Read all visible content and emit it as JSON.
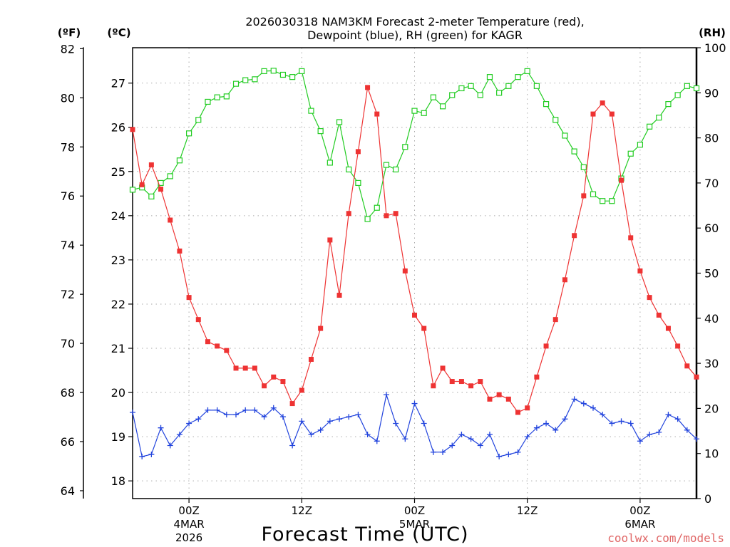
{
  "chart_data": {
    "type": "line",
    "title_line1": "2026030318 NAM3KM Forecast 2-meter Temperature (red),",
    "title_line2": "Dewpoint (blue), RH (green) for KAGR",
    "xlabel": "Forecast Time (UTC)",
    "credit": "coolwx.com/models",
    "left_f_label": "(ºF)",
    "left_c_label": "(ºC)",
    "right_label": "(RH)",
    "celsius_ylim": [
      17.6,
      27.8
    ],
    "fahrenheit_ticks": [
      64,
      66,
      68,
      70,
      72,
      74,
      76,
      78,
      80,
      82
    ],
    "celsius_ticks": [
      18,
      19,
      20,
      21,
      22,
      23,
      24,
      25,
      26,
      27
    ],
    "rh_ylim": [
      0,
      100
    ],
    "rh_ticks": [
      0,
      10,
      20,
      30,
      40,
      50,
      60,
      70,
      80,
      90,
      100
    ],
    "x_range_hours": [
      0,
      60
    ],
    "x_ticks": [
      {
        "hour": 6,
        "label": "00Z",
        "date": "4MAR",
        "year": "2026"
      },
      {
        "hour": 18,
        "label": "12Z",
        "date": "",
        "year": ""
      },
      {
        "hour": 30,
        "label": "00Z",
        "date": "5MAR",
        "year": ""
      },
      {
        "hour": 42,
        "label": "12Z",
        "date": "",
        "year": ""
      },
      {
        "hour": 54,
        "label": "00Z",
        "date": "6MAR",
        "year": ""
      }
    ],
    "series": [
      {
        "name": "Temperature",
        "unit": "C",
        "color": "#ee3333",
        "marker": "filled-square",
        "values": [
          25.95,
          24.7,
          25.15,
          24.6,
          23.9,
          23.2,
          22.15,
          21.65,
          21.15,
          21.05,
          20.95,
          20.55,
          20.55,
          20.55,
          20.15,
          20.35,
          20.25,
          19.75,
          20.05,
          20.75,
          21.45,
          23.45,
          22.2,
          24.05,
          25.45,
          26.9,
          26.3,
          24.0,
          24.05,
          22.75,
          21.75,
          21.45,
          20.15,
          20.55,
          20.25,
          20.25,
          20.15,
          20.25,
          19.85,
          19.95,
          19.85,
          19.55,
          19.65,
          20.35,
          21.05,
          21.65,
          22.55,
          23.55,
          24.45,
          26.3,
          26.55,
          26.3,
          24.8,
          23.5,
          22.75,
          22.15,
          21.75,
          21.45,
          21.05,
          20.6,
          20.35
        ]
      },
      {
        "name": "Dewpoint",
        "unit": "C",
        "color": "#2244dd",
        "marker": "plus",
        "values": [
          19.55,
          18.55,
          18.6,
          19.2,
          18.8,
          19.05,
          19.3,
          19.4,
          19.6,
          19.6,
          19.5,
          19.5,
          19.6,
          19.6,
          19.45,
          19.65,
          19.45,
          18.8,
          19.35,
          19.05,
          19.15,
          19.35,
          19.4,
          19.45,
          19.5,
          19.05,
          18.9,
          19.95,
          19.3,
          18.95,
          19.75,
          19.3,
          18.65,
          18.65,
          18.8,
          19.05,
          18.95,
          18.8,
          19.05,
          18.55,
          18.6,
          18.65,
          19.0,
          19.2,
          19.3,
          19.15,
          19.4,
          19.85,
          19.75,
          19.65,
          19.5,
          19.3,
          19.35,
          19.3,
          18.9,
          19.05,
          19.1,
          19.5,
          19.4,
          19.15,
          18.95
        ]
      },
      {
        "name": "RH",
        "unit": "%",
        "color": "#22cc22",
        "marker": "open-square",
        "values": [
          68.5,
          69.0,
          67.0,
          70.0,
          71.5,
          75.0,
          81.0,
          84.0,
          88.0,
          89.0,
          89.2,
          92.0,
          92.8,
          93.0,
          94.8,
          94.9,
          94.0,
          93.5,
          94.8,
          86.0,
          81.5,
          74.5,
          83.5,
          73.0,
          70.0,
          62.0,
          64.5,
          74.0,
          73.0,
          78.0,
          86.0,
          85.5,
          89.0,
          87.0,
          89.5,
          91.0,
          91.5,
          89.5,
          93.5,
          90.0,
          91.5,
          93.5,
          94.8,
          91.5,
          87.5,
          84.0,
          80.5,
          77.0,
          73.5,
          67.5,
          66.0,
          66.0,
          71.0,
          76.5,
          78.5,
          82.5,
          84.5,
          87.5,
          89.5,
          91.5,
          91.0
        ]
      }
    ]
  }
}
